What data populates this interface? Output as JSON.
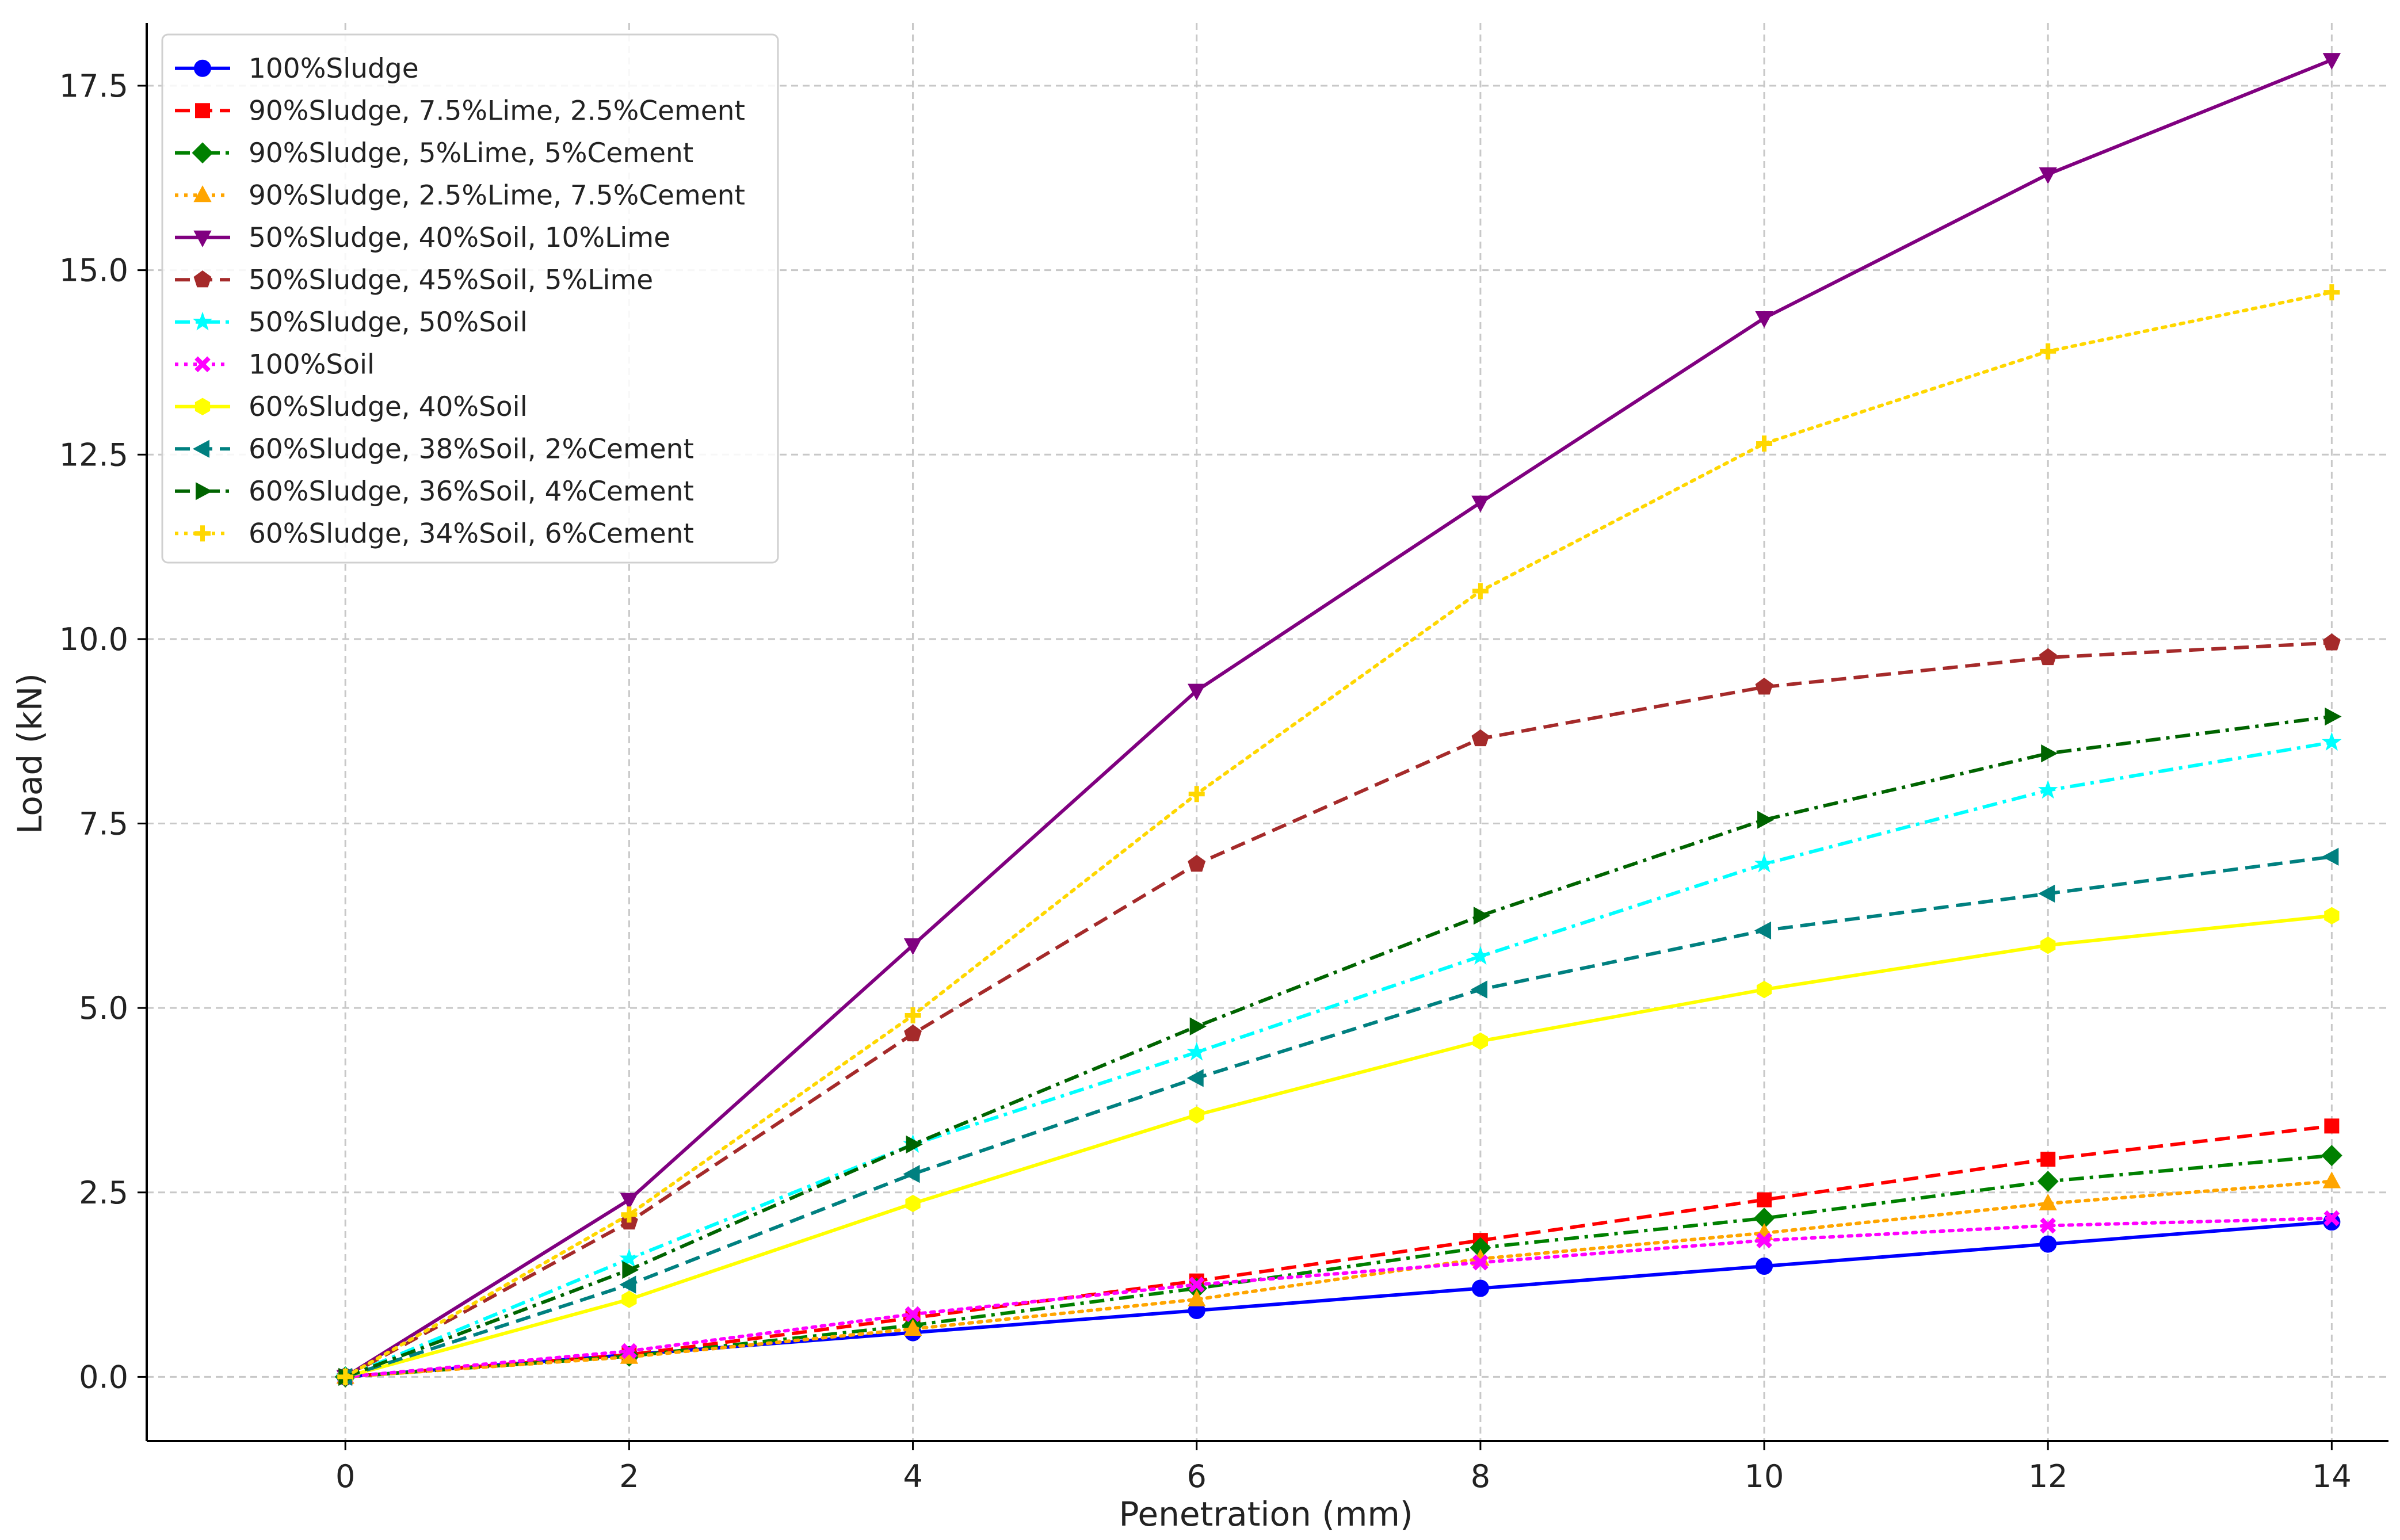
{
  "chart_data": {
    "type": "line",
    "title": "",
    "xlabel": "Penetration (mm)",
    "ylabel": "Load (kN)",
    "xlim": [
      -1.4,
      14.4
    ],
    "ylim": [
      -0.87,
      18.35
    ],
    "x": [
      0,
      2,
      4,
      6,
      8,
      10,
      12,
      14
    ],
    "x_ticks": [
      0,
      2,
      4,
      6,
      8,
      10,
      12,
      14
    ],
    "x_tick_labels": [
      "0",
      "2",
      "4",
      "6",
      "8",
      "10",
      "12",
      "14"
    ],
    "y_ticks": [
      0,
      2.5,
      5,
      7.5,
      10,
      12.5,
      15,
      17.5
    ],
    "y_tick_labels": [
      "0.0",
      "2.5",
      "5.0",
      "7.5",
      "10.0",
      "12.5",
      "15.0",
      "17.5"
    ],
    "grid": true,
    "legend_position": "top-left",
    "series": [
      {
        "name": "100%Sludge",
        "color": "#0000ff",
        "dash": "solid",
        "marker": "circle",
        "values": [
          0,
          0.3,
          0.6,
          0.9,
          1.2,
          1.5,
          1.8,
          2.1
        ]
      },
      {
        "name": "90%Sludge, 7.5%Lime, 2.5%Cement",
        "color": "#ff0000",
        "dash": "dashed",
        "marker": "square",
        "values": [
          0,
          0.3,
          0.8,
          1.3,
          1.85,
          2.4,
          2.95,
          3.4
        ]
      },
      {
        "name": "90%Sludge, 5%Lime, 5%Cement",
        "color": "#008000",
        "dash": "dashdot",
        "marker": "diamond",
        "values": [
          0,
          0.28,
          0.7,
          1.2,
          1.75,
          2.15,
          2.65,
          3.0
        ]
      },
      {
        "name": "90%Sludge, 2.5%Lime, 7.5%Cement",
        "color": "#ffa500",
        "dash": "dotted",
        "marker": "triangle-up",
        "values": [
          0,
          0.27,
          0.65,
          1.05,
          1.6,
          1.95,
          2.35,
          2.65
        ]
      },
      {
        "name": "50%Sludge, 40%Soil, 10%Lime",
        "color": "#800080",
        "dash": "solid",
        "marker": "triangle-down",
        "values": [
          0,
          2.4,
          5.85,
          9.3,
          11.85,
          14.35,
          16.3,
          17.85
        ]
      },
      {
        "name": "50%Sludge, 45%Soil, 5%Lime",
        "color": "#a52a2a",
        "dash": "dashed",
        "marker": "pentagon",
        "values": [
          0,
          2.1,
          4.65,
          6.95,
          8.65,
          9.35,
          9.75,
          9.95
        ]
      },
      {
        "name": "50%Sludge, 50%Soil",
        "color": "#00ffff",
        "dash": "dashdot",
        "marker": "star",
        "values": [
          0,
          1.6,
          3.15,
          4.4,
          5.7,
          6.95,
          7.95,
          8.6
        ]
      },
      {
        "name": "100%Soil",
        "color": "#ff00ff",
        "dash": "dotted",
        "marker": "x",
        "values": [
          0,
          0.35,
          0.85,
          1.25,
          1.55,
          1.85,
          2.05,
          2.15
        ]
      },
      {
        "name": "60%Sludge, 40%Soil",
        "color": "#ffff00",
        "dash": "solid",
        "marker": "hexagon",
        "values": [
          0,
          1.05,
          2.35,
          3.55,
          4.55,
          5.25,
          5.85,
          6.25
        ]
      },
      {
        "name": "60%Sludge, 38%Soil, 2%Cement",
        "color": "#008080",
        "dash": "dashed",
        "marker": "triangle-left",
        "values": [
          0,
          1.25,
          2.75,
          4.05,
          5.25,
          6.05,
          6.55,
          7.05
        ]
      },
      {
        "name": "60%Sludge, 36%Soil, 4%Cement",
        "color": "#006400",
        "dash": "dashdot",
        "marker": "triangle-right",
        "values": [
          0,
          1.45,
          3.15,
          4.75,
          6.25,
          7.55,
          8.45,
          8.95
        ]
      },
      {
        "name": "60%Sludge, 34%Soil, 6%Cement",
        "color": "#ffd700",
        "dash": "dotted",
        "marker": "plus",
        "values": [
          0,
          2.2,
          4.9,
          7.9,
          10.65,
          12.65,
          13.9,
          14.7
        ]
      }
    ]
  }
}
